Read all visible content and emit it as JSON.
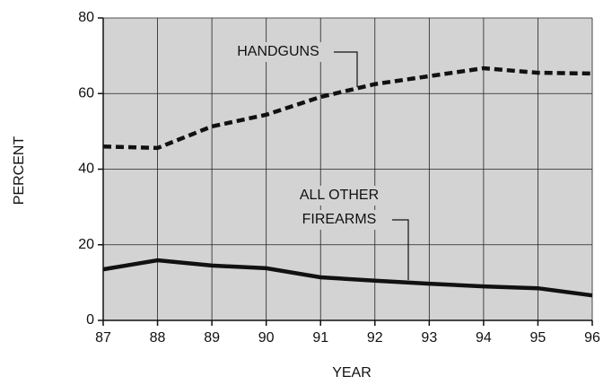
{
  "chart_data": {
    "type": "line",
    "xlabel": "YEAR",
    "ylabel": "PERCENT",
    "x": [
      87,
      88,
      89,
      90,
      91,
      92,
      93,
      94,
      95,
      96
    ],
    "series": [
      {
        "color": "#111111",
        "style": "dashed",
        "values": [
          46,
          45.6,
          51.3,
          54.4,
          59.1,
          62.5,
          64.6,
          66.7,
          65.5,
          65.3
        ]
      },
      {
        "color": "#111111",
        "style": "solid",
        "values": [
          13.5,
          15.9,
          14.5,
          13.8,
          11.4,
          10.5,
          9.7,
          9,
          8.5,
          6.6
        ]
      }
    ],
    "annotations": [
      {
        "lines": [
          "HANDGUNS"
        ]
      },
      {
        "lines": [
          "ALL OTHER",
          "FIREARMS"
        ]
      }
    ],
    "xlim": [
      87,
      96
    ],
    "xticks": [
      87,
      88,
      89,
      90,
      91,
      92,
      93,
      94,
      95,
      96
    ],
    "ylim": [
      0,
      80
    ],
    "yticks": [
      0,
      20,
      40,
      60,
      80
    ],
    "grid": true,
    "background": "#d3d3d3"
  }
}
